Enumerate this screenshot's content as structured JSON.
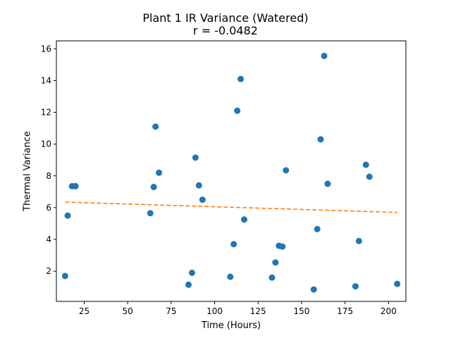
{
  "chart_data": {
    "type": "scatter",
    "title": "Plant 1 IR Variance (Watered)",
    "subtitle": "r = -0.0482",
    "xlabel": "Time (Hours)",
    "ylabel": "Thermal Variance",
    "xlim": [
      9,
      210
    ],
    "ylim": [
      0.1,
      16.5
    ],
    "xticks": [
      25,
      50,
      75,
      100,
      125,
      150,
      175,
      200
    ],
    "yticks": [
      2,
      4,
      6,
      8,
      10,
      12,
      14,
      16
    ],
    "grid": false,
    "point_color": "#1f77b4",
    "trend_color": "#ff7f0e",
    "points": [
      {
        "x": 14,
        "y": 1.7
      },
      {
        "x": 15.5,
        "y": 5.5
      },
      {
        "x": 18,
        "y": 7.35
      },
      {
        "x": 20,
        "y": 7.35
      },
      {
        "x": 63,
        "y": 5.65
      },
      {
        "x": 65,
        "y": 7.3
      },
      {
        "x": 66,
        "y": 11.1
      },
      {
        "x": 68,
        "y": 8.2
      },
      {
        "x": 85,
        "y": 1.15
      },
      {
        "x": 87,
        "y": 1.9
      },
      {
        "x": 89,
        "y": 9.15
      },
      {
        "x": 91,
        "y": 7.4
      },
      {
        "x": 93,
        "y": 6.5
      },
      {
        "x": 109,
        "y": 1.65
      },
      {
        "x": 111,
        "y": 3.7
      },
      {
        "x": 113,
        "y": 12.1
      },
      {
        "x": 115,
        "y": 14.1
      },
      {
        "x": 117,
        "y": 5.25
      },
      {
        "x": 133,
        "y": 1.6
      },
      {
        "x": 135,
        "y": 2.55
      },
      {
        "x": 137,
        "y": 3.6
      },
      {
        "x": 139,
        "y": 3.55
      },
      {
        "x": 141,
        "y": 8.35
      },
      {
        "x": 157,
        "y": 0.85
      },
      {
        "x": 159,
        "y": 4.65
      },
      {
        "x": 161,
        "y": 10.3
      },
      {
        "x": 163,
        "y": 15.55
      },
      {
        "x": 165,
        "y": 7.5
      },
      {
        "x": 181,
        "y": 1.05
      },
      {
        "x": 183,
        "y": 3.9
      },
      {
        "x": 187,
        "y": 8.7
      },
      {
        "x": 189,
        "y": 7.95
      },
      {
        "x": 205,
        "y": 1.2
      }
    ],
    "trendline": {
      "style": "dashed",
      "x": [
        14,
        205
      ],
      "y": [
        6.35,
        5.7
      ]
    }
  }
}
